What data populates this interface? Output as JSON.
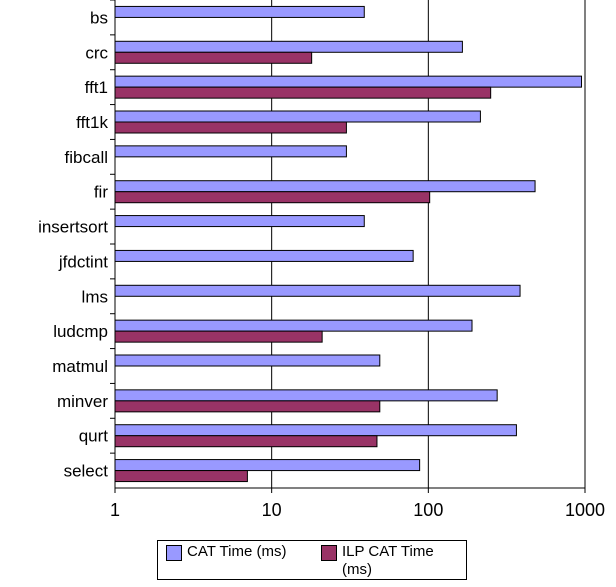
{
  "chart_data": {
    "type": "bar",
    "orientation": "horizontal",
    "x_scale": "log",
    "xlim": [
      1,
      1000
    ],
    "x_ticks": [
      "1",
      "10",
      "100",
      "1000"
    ],
    "grid": "vertical major gridlines",
    "legend_position": "bottom",
    "categories": [
      "bs",
      "crc",
      "fft1",
      "fft1k",
      "fibcall",
      "fir",
      "insertsort",
      "jfdctint",
      "lms",
      "ludcmp",
      "matmul",
      "minver",
      "qurt",
      "select"
    ],
    "series": [
      {
        "name": "CAT Time (ms)",
        "color": "#9999ff",
        "values": [
          39,
          165,
          950,
          215,
          30,
          480,
          39,
          80,
          385,
          190,
          49,
          275,
          365,
          88
        ]
      },
      {
        "name": "ILP CAT Time (ms)",
        "color": "#993366",
        "values": [
          null,
          18,
          250,
          30,
          null,
          102,
          null,
          null,
          null,
          21,
          null,
          49,
          47,
          7
        ]
      }
    ]
  }
}
